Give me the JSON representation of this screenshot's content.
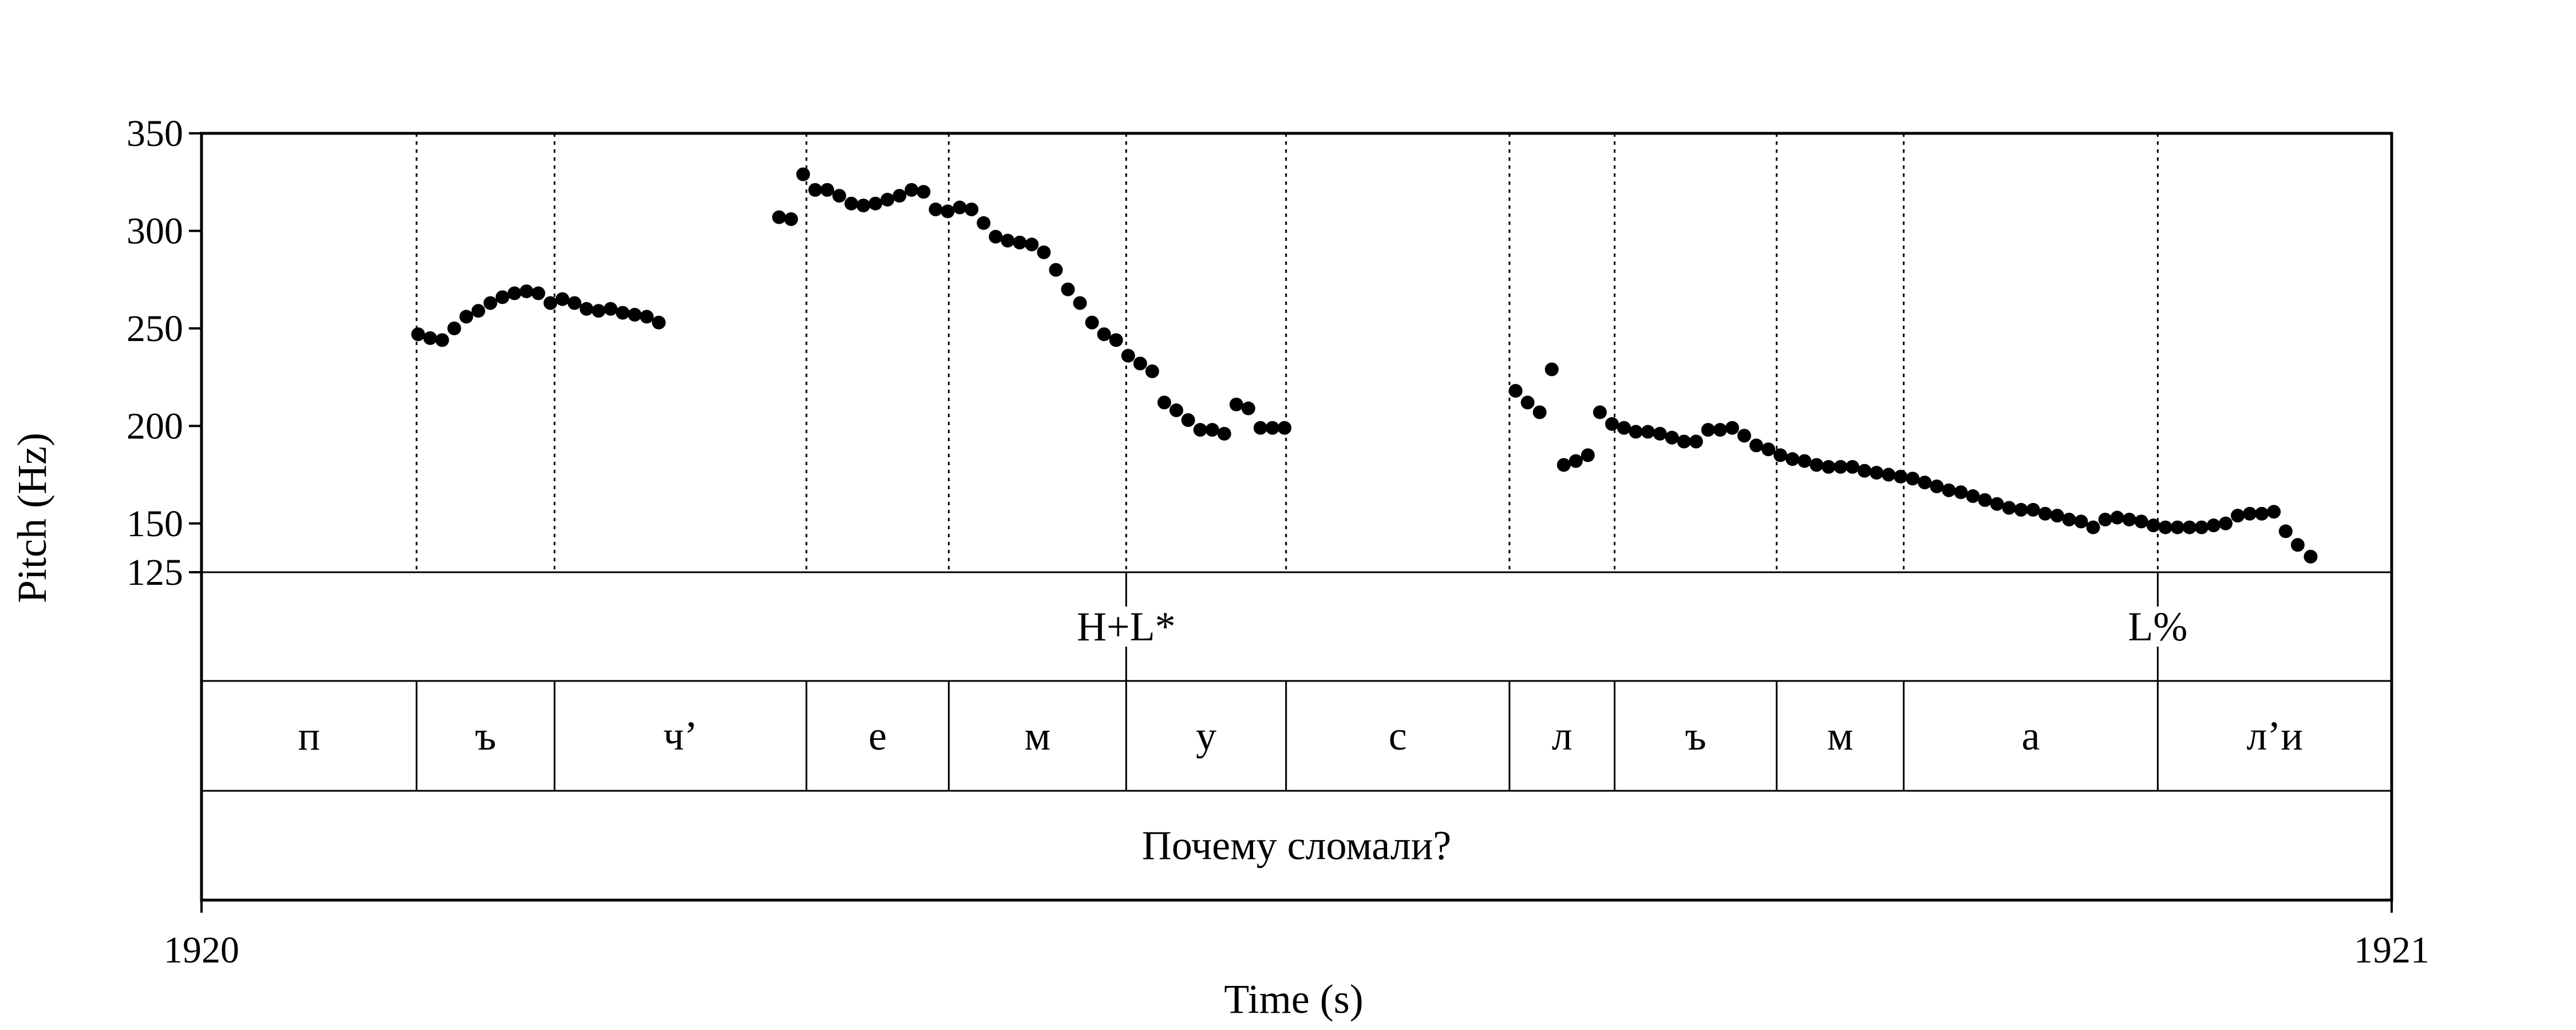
{
  "chart_data": {
    "type": "scatter",
    "xlabel": "Time (s)",
    "ylabel": "Pitch (Hz)",
    "xlim": [
      1920,
      1921
    ],
    "ylim": [
      125,
      350
    ],
    "yticks": [
      125,
      150,
      200,
      250,
      300,
      350
    ],
    "xtick_labels": [
      "1920",
      "1921"
    ],
    "grid": "vertical dotted lines at segment boundaries",
    "series": [
      {
        "points": [
          [
            1920.0989,
            247
          ],
          [
            1920.1044,
            245
          ],
          [
            1920.1099,
            244
          ],
          [
            1920.1154,
            250
          ],
          [
            1920.1209,
            256
          ],
          [
            1920.1264,
            259
          ],
          [
            1920.1319,
            263
          ],
          [
            1920.1374,
            266
          ],
          [
            1920.1429,
            268
          ],
          [
            1920.1484,
            269
          ],
          [
            1920.1538,
            268
          ],
          [
            1920.1593,
            263
          ],
          [
            1920.1648,
            265
          ],
          [
            1920.1703,
            263
          ],
          [
            1920.1758,
            260
          ],
          [
            1920.1813,
            259
          ],
          [
            1920.1868,
            260
          ],
          [
            1920.1923,
            258
          ],
          [
            1920.1978,
            257
          ],
          [
            1920.2033,
            256
          ],
          [
            1920.2088,
            253
          ],
          [
            1920.2637,
            307
          ],
          [
            1920.2692,
            306
          ],
          [
            1920.2747,
            329
          ],
          [
            1920.2802,
            321
          ],
          [
            1920.2857,
            321
          ],
          [
            1920.2912,
            318
          ],
          [
            1920.2967,
            314
          ],
          [
            1920.3022,
            313
          ],
          [
            1920.3077,
            314
          ],
          [
            1920.3132,
            316
          ],
          [
            1920.3187,
            318
          ],
          [
            1920.3242,
            321
          ],
          [
            1920.3297,
            320
          ],
          [
            1920.3352,
            311
          ],
          [
            1920.3407,
            310
          ],
          [
            1920.3462,
            312
          ],
          [
            1920.3516,
            311
          ],
          [
            1920.3571,
            304
          ],
          [
            1920.3626,
            297
          ],
          [
            1920.3681,
            295
          ],
          [
            1920.3736,
            294
          ],
          [
            1920.3791,
            293
          ],
          [
            1920.3846,
            289
          ],
          [
            1920.3901,
            280
          ],
          [
            1920.3956,
            270
          ],
          [
            1920.4011,
            263
          ],
          [
            1920.4066,
            253
          ],
          [
            1920.4121,
            247
          ],
          [
            1920.4176,
            244
          ],
          [
            1920.4231,
            236
          ],
          [
            1920.4286,
            232
          ],
          [
            1920.4341,
            228
          ],
          [
            1920.4396,
            212
          ],
          [
            1920.4451,
            208
          ],
          [
            1920.4505,
            203
          ],
          [
            1920.456,
            198
          ],
          [
            1920.4615,
            198
          ],
          [
            1920.467,
            196
          ],
          [
            1920.4725,
            211
          ],
          [
            1920.478,
            209
          ],
          [
            1920.4835,
            199
          ],
          [
            1920.489,
            199
          ],
          [
            1920.4945,
            199
          ],
          [
            1920.6,
            218
          ],
          [
            1920.6055,
            212
          ],
          [
            1920.611,
            207
          ],
          [
            1920.6165,
            229
          ],
          [
            1920.622,
            180
          ],
          [
            1920.6275,
            182
          ],
          [
            1920.633,
            185
          ],
          [
            1920.6385,
            207
          ],
          [
            1920.644,
            201
          ],
          [
            1920.6495,
            199
          ],
          [
            1920.6549,
            197
          ],
          [
            1920.6604,
            197
          ],
          [
            1920.6659,
            196
          ],
          [
            1920.6714,
            194
          ],
          [
            1920.6769,
            192
          ],
          [
            1920.6824,
            192
          ],
          [
            1920.6879,
            198
          ],
          [
            1920.6934,
            198
          ],
          [
            1920.6989,
            199
          ],
          [
            1920.7044,
            195
          ],
          [
            1920.7099,
            190
          ],
          [
            1920.7154,
            188
          ],
          [
            1920.7209,
            185
          ],
          [
            1920.7264,
            183
          ],
          [
            1920.7319,
            182
          ],
          [
            1920.7374,
            180
          ],
          [
            1920.7429,
            179
          ],
          [
            1920.7484,
            179
          ],
          [
            1920.7538,
            179
          ],
          [
            1920.7593,
            177
          ],
          [
            1920.7648,
            176
          ],
          [
            1920.7703,
            175
          ],
          [
            1920.7758,
            174
          ],
          [
            1920.7813,
            173
          ],
          [
            1920.7868,
            171
          ],
          [
            1920.7923,
            169
          ],
          [
            1920.7978,
            167
          ],
          [
            1920.8033,
            166
          ],
          [
            1920.8088,
            164
          ],
          [
            1920.8143,
            162
          ],
          [
            1920.8198,
            160
          ],
          [
            1920.8253,
            158
          ],
          [
            1920.8308,
            157
          ],
          [
            1920.8363,
            157
          ],
          [
            1920.8418,
            155
          ],
          [
            1920.8473,
            154
          ],
          [
            1920.8527,
            152
          ],
          [
            1920.8582,
            151
          ],
          [
            1920.8637,
            148
          ],
          [
            1920.8692,
            152
          ],
          [
            1920.8747,
            153
          ],
          [
            1920.8802,
            152
          ],
          [
            1920.8857,
            151
          ],
          [
            1920.8912,
            149
          ],
          [
            1920.8967,
            148
          ],
          [
            1920.9022,
            148
          ],
          [
            1920.9077,
            148
          ],
          [
            1920.9132,
            148
          ],
          [
            1920.9187,
            149
          ],
          [
            1920.9242,
            150
          ],
          [
            1920.9297,
            154
          ],
          [
            1920.9352,
            155
          ],
          [
            1920.9407,
            155
          ],
          [
            1920.9462,
            156
          ],
          [
            1920.9516,
            146
          ],
          [
            1920.9571,
            139
          ],
          [
            1920.963,
            133
          ]
        ]
      }
    ],
    "boundaries": [
      1920.0982,
      1920.1612,
      1920.2762,
      1920.3412,
      1920.4222,
      1920.4952,
      1920.5972,
      1920.6452,
      1920.7192,
      1920.7772,
      1920.8932
    ],
    "tiers": {
      "tones": [
        {
          "t": 1920.4222,
          "label": "H+L*"
        },
        {
          "t": 1920.8932,
          "label": "L%"
        }
      ],
      "segments": [
        {
          "start": 1920.0,
          "end": 1920.0982,
          "label": "п"
        },
        {
          "start": 1920.0982,
          "end": 1920.1612,
          "label": "ъ"
        },
        {
          "start": 1920.1612,
          "end": 1920.2762,
          "label": "ч’"
        },
        {
          "start": 1920.2762,
          "end": 1920.3412,
          "label": "е"
        },
        {
          "start": 1920.3412,
          "end": 1920.4222,
          "label": "м"
        },
        {
          "start": 1920.4222,
          "end": 1920.4952,
          "label": "у"
        },
        {
          "start": 1920.4952,
          "end": 1920.5972,
          "label": "с"
        },
        {
          "start": 1920.5972,
          "end": 1920.6452,
          "label": "л"
        },
        {
          "start": 1920.6452,
          "end": 1920.7192,
          "label": "ъ"
        },
        {
          "start": 1920.7192,
          "end": 1920.7772,
          "label": "м"
        },
        {
          "start": 1920.7772,
          "end": 1920.8932,
          "label": "а"
        },
        {
          "start": 1920.8932,
          "end": 1921.0,
          "label": "л’и"
        }
      ],
      "utterance": "Почему сломали?"
    }
  }
}
